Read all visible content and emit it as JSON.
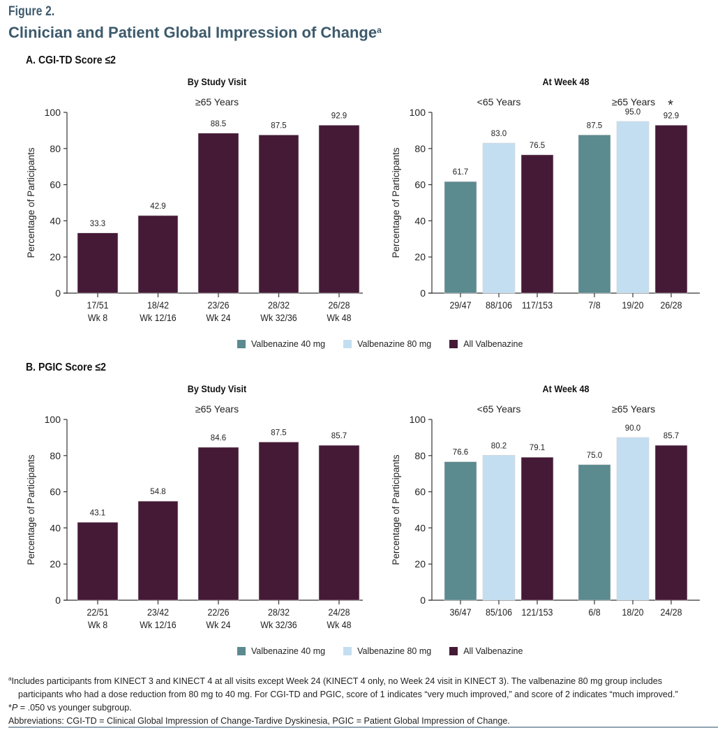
{
  "figure": {
    "label": "Figure 2.",
    "title": "Clinician and Patient Global Impression of Change",
    "title_superscript": "a"
  },
  "panels": [
    {
      "label": "A. CGI-TD Score ≤2"
    },
    {
      "label": "B. PGIC Score ≤2"
    }
  ],
  "legend": [
    {
      "label": "Valbenazine 40 mg",
      "color": "#5b8a8f"
    },
    {
      "label": "Valbenazine 80 mg",
      "color": "#c3def1"
    },
    {
      "label": "All Valbenazine",
      "color": "#451a36"
    }
  ],
  "chart_data": [
    {
      "type": "bar",
      "panel": "A",
      "title": "By Study Visit",
      "subtitle": "≥65 Years",
      "ylabel": "Percentage of Participants",
      "xlabel": "",
      "ylim": [
        0,
        100
      ],
      "yticks": [
        0,
        20,
        40,
        60,
        80,
        100
      ],
      "grid": false,
      "categories": [
        "17/51\nWk 8",
        "18/42\nWk 12/16",
        "23/26\nWk 24",
        "28/32\nWk 32/36",
        "26/28\nWk 48"
      ],
      "series": [
        {
          "name": "All Valbenazine",
          "color": "#451a36",
          "values": [
            33.3,
            42.9,
            88.5,
            87.5,
            92.9
          ]
        }
      ],
      "data_labels": [
        "33.3",
        "42.9",
        "88.5",
        "87.5",
        "92.9"
      ]
    },
    {
      "type": "bar",
      "panel": "A",
      "title": "At Week 48",
      "ylabel": "Percentage of Participants",
      "xlabel": "",
      "ylim": [
        0,
        100
      ],
      "yticks": [
        0,
        20,
        40,
        60,
        80,
        100
      ],
      "grid": false,
      "groups": [
        {
          "label": "<65 Years",
          "annotation": "",
          "bars": [
            {
              "series": "Valbenazine 40 mg",
              "color": "#5b8a8f",
              "value": 61.7,
              "label": "61.7",
              "n": "29/47"
            },
            {
              "series": "Valbenazine 80 mg",
              "color": "#c3def1",
              "value": 83.0,
              "label": "83.0",
              "n": "88/106"
            },
            {
              "series": "All Valbenazine",
              "color": "#451a36",
              "value": 76.5,
              "label": "76.5",
              "n": "117/153"
            }
          ]
        },
        {
          "label": "≥65 Years",
          "annotation": "*",
          "bars": [
            {
              "series": "Valbenazine 40 mg",
              "color": "#5b8a8f",
              "value": 87.5,
              "label": "87.5",
              "n": "7/8"
            },
            {
              "series": "Valbenazine 80 mg",
              "color": "#c3def1",
              "value": 95.0,
              "label": "95.0",
              "n": "19/20"
            },
            {
              "series": "All Valbenazine",
              "color": "#451a36",
              "value": 92.9,
              "label": "92.9",
              "n": "26/28"
            }
          ]
        }
      ],
      "legend_position": "bottom-center"
    },
    {
      "type": "bar",
      "panel": "B",
      "title": "By Study Visit",
      "subtitle": "≥65 Years",
      "ylabel": "Percentage of Participants",
      "xlabel": "",
      "ylim": [
        0,
        100
      ],
      "yticks": [
        0,
        20,
        40,
        60,
        80,
        100
      ],
      "grid": false,
      "categories": [
        "22/51\nWk 8",
        "23/42\nWk 12/16",
        "22/26\nWk 24",
        "28/32\nWk 32/36",
        "24/28\nWk 48"
      ],
      "series": [
        {
          "name": "All Valbenazine",
          "color": "#451a36",
          "values": [
            43.1,
            54.8,
            84.6,
            87.5,
            85.7
          ]
        }
      ],
      "data_labels": [
        "43.1",
        "54.8",
        "84.6",
        "87.5",
        "85.7"
      ]
    },
    {
      "type": "bar",
      "panel": "B",
      "title": "At Week 48",
      "ylabel": "Percentage of Participants",
      "xlabel": "",
      "ylim": [
        0,
        100
      ],
      "yticks": [
        0,
        20,
        40,
        60,
        80,
        100
      ],
      "grid": false,
      "groups": [
        {
          "label": "<65 Years",
          "annotation": "",
          "bars": [
            {
              "series": "Valbenazine 40 mg",
              "color": "#5b8a8f",
              "value": 76.6,
              "label": "76.6",
              "n": "36/47"
            },
            {
              "series": "Valbenazine 80 mg",
              "color": "#c3def1",
              "value": 80.2,
              "label": "80.2",
              "n": "85/106"
            },
            {
              "series": "All Valbenazine",
              "color": "#451a36",
              "value": 79.1,
              "label": "79.1",
              "n": "121/153"
            }
          ]
        },
        {
          "label": "≥65 Years",
          "annotation": "",
          "bars": [
            {
              "series": "Valbenazine 40 mg",
              "color": "#5b8a8f",
              "value": 75.0,
              "label": "75.0",
              "n": "6/8"
            },
            {
              "series": "Valbenazine 80 mg",
              "color": "#c3def1",
              "value": 90.0,
              "label": "90.0",
              "n": "18/20"
            },
            {
              "series": "All Valbenazine",
              "color": "#451a36",
              "value": 85.7,
              "label": "85.7",
              "n": "24/28"
            }
          ]
        }
      ],
      "legend_position": "bottom-center"
    }
  ],
  "footnotes": {
    "a_marker": "a",
    "a_line1": "Includes participants from KINECT 3 and KINECT 4 at all visits except Week 24 (KINECT 4 only, no Week 24 visit in KINECT 3). The valbenazine 80 mg group includes",
    "a_line2": "participants who had a dose reduction from 80 mg to 40 mg. For CGI-TD and PGIC, score of 1 indicates “very much improved,” and score of 2 indicates “much improved.”",
    "p_star": "*",
    "p_italic": "P",
    "p_rest": " = .050 vs younger subgroup.",
    "abbreviations": "Abbreviations: CGI-TD = Clinical Global Impression of Change-Tardive Dyskinesia, PGIC = Patient Global Impression of Change."
  }
}
